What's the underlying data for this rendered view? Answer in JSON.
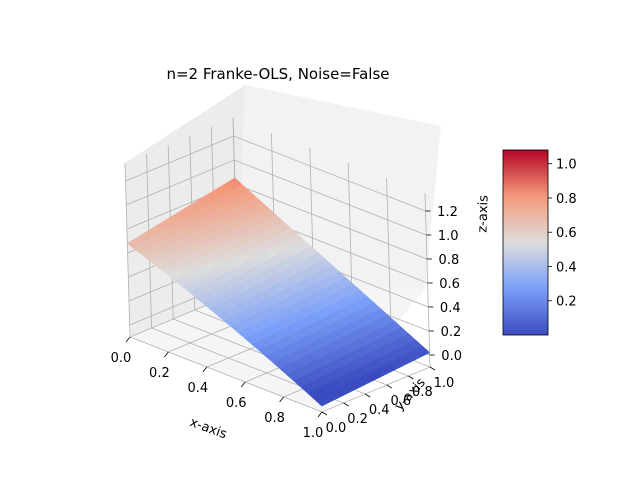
{
  "title": "n=2 Franke-OLS, Noise=False",
  "chart_data": {
    "type": "surface3d",
    "title": "n=2 Franke-OLS, Noise=False",
    "xlabel": "x-axis",
    "ylabel": "y-axis",
    "zlabel": "z-axis",
    "xlim": [
      0,
      1
    ],
    "ylim": [
      0,
      1
    ],
    "zlim": [
      -0.1,
      1.35
    ],
    "x_ticks": [
      "0.0",
      "0.2",
      "0.4",
      "0.6",
      "0.8",
      "1.0"
    ],
    "y_ticks": [
      "0.0",
      "0.2",
      "0.4",
      "0.6",
      "0.8",
      "1.0"
    ],
    "z_ticks": [
      "0.0",
      "0.2",
      "0.4",
      "0.6",
      "0.8",
      "1.0",
      "1.2"
    ],
    "colormap": "coolwarm",
    "colorbar_ticks": [
      "0.2",
      "0.4",
      "0.6",
      "0.8",
      "1.0"
    ],
    "colorbar_range": [
      0.0,
      1.08
    ],
    "corner_values": {
      "x0_y0": 0.68,
      "x1_y0": -0.05,
      "x0_y1": 0.85,
      "x1_y1": 0.02
    },
    "grid": true
  }
}
